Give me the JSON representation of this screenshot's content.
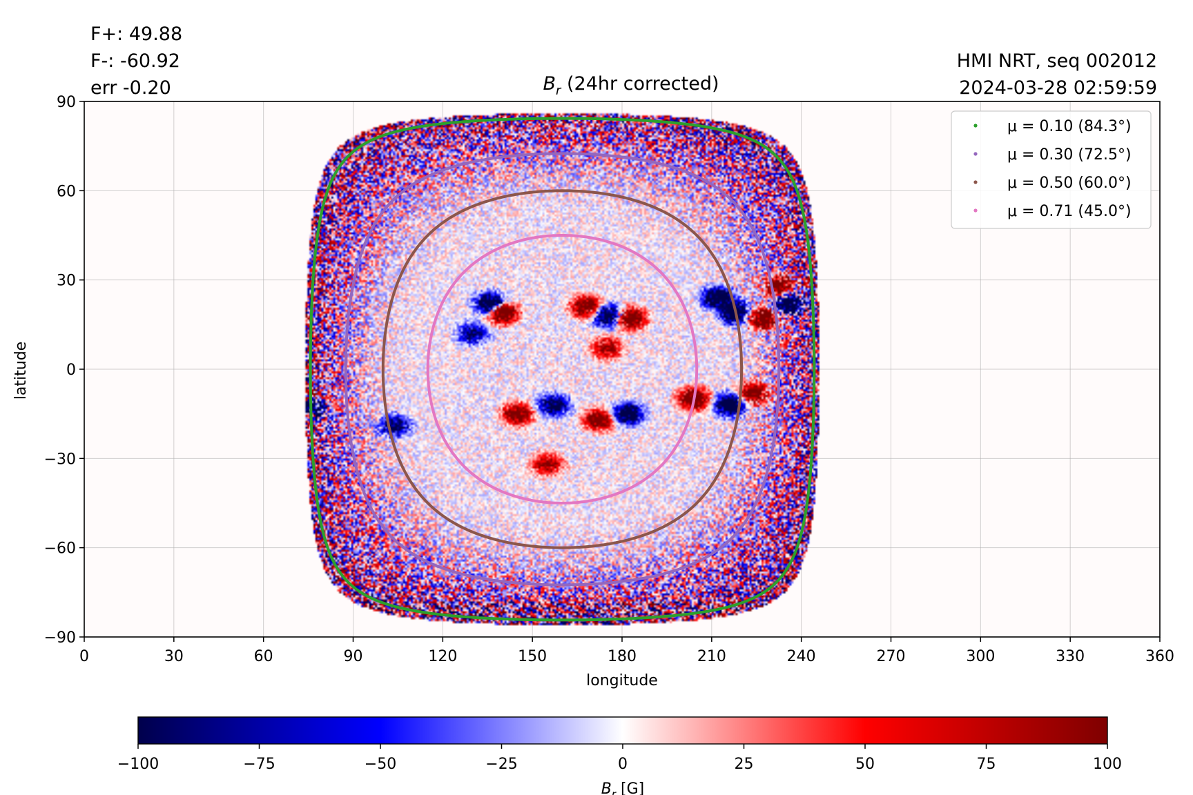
{
  "header": {
    "flux_pos": "F+: 49.88",
    "flux_neg": "F-: -60.92",
    "err": "err -0.20",
    "instrument": "HMI NRT, seq 002012",
    "timestamp": "2024-03-28 02:59:59"
  },
  "chart_data": {
    "type": "heatmap",
    "title": {
      "symbol": "B",
      "sub": "r",
      "text": " (24hr corrected)"
    },
    "xlabel": "longitude",
    "ylabel": "latitude",
    "xlim": [
      0,
      360
    ],
    "ylim": [
      -90,
      90
    ],
    "xticks": [
      0,
      30,
      60,
      90,
      120,
      150,
      180,
      210,
      240,
      270,
      300,
      330,
      360
    ],
    "yticks": [
      90,
      60,
      30,
      0,
      -30,
      -60,
      -90
    ],
    "ytick_labels": [
      "90",
      "60",
      "30",
      "0",
      "−30",
      "−60",
      "−90"
    ],
    "grid": true,
    "disk_center": {
      "lon": 160,
      "lat": -7
    },
    "legend": {
      "placement": "upper right",
      "entries": [
        {
          "label": "μ = 0.10 (84.3°)",
          "mu": 0.1,
          "angle_deg": 84.3,
          "color": "#2ca02c"
        },
        {
          "label": "μ = 0.30 (72.5°)",
          "mu": 0.3,
          "angle_deg": 72.5,
          "color": "#9467bd"
        },
        {
          "label": "μ = 0.50 (60.0°)",
          "mu": 0.5,
          "angle_deg": 60.0,
          "color": "#8c564b"
        },
        {
          "label": "μ = 0.71 (45.0°)",
          "mu": 0.71,
          "angle_deg": 45.0,
          "color": "#e377c2"
        }
      ]
    },
    "active_regions": [
      {
        "lon": 136,
        "lat": 22,
        "polarity": -1,
        "strength": 1.0
      },
      {
        "lon": 140,
        "lat": 19,
        "polarity": 1,
        "strength": 1.0
      },
      {
        "lon": 130,
        "lat": 12,
        "polarity": -1,
        "strength": 0.6
      },
      {
        "lon": 168,
        "lat": 21,
        "polarity": 1,
        "strength": 0.9
      },
      {
        "lon": 175,
        "lat": 18,
        "polarity": -1,
        "strength": 0.9
      },
      {
        "lon": 183,
        "lat": 17,
        "polarity": 1,
        "strength": 0.9
      },
      {
        "lon": 175,
        "lat": 7,
        "polarity": 1,
        "strength": 0.6
      },
      {
        "lon": 212,
        "lat": 24,
        "polarity": -1,
        "strength": 1.0
      },
      {
        "lon": 218,
        "lat": 19,
        "polarity": -1,
        "strength": 1.0
      },
      {
        "lon": 227,
        "lat": 17,
        "polarity": 1,
        "strength": 1.0
      },
      {
        "lon": 236,
        "lat": 22,
        "polarity": -1,
        "strength": 1.0
      },
      {
        "lon": 233,
        "lat": 28,
        "polarity": 1,
        "strength": 0.8
      },
      {
        "lon": 204,
        "lat": -10,
        "polarity": 1,
        "strength": 1.0
      },
      {
        "lon": 216,
        "lat": -12,
        "polarity": -1,
        "strength": 1.0
      },
      {
        "lon": 224,
        "lat": -8,
        "polarity": 1,
        "strength": 0.8
      },
      {
        "lon": 182,
        "lat": -15,
        "polarity": -1,
        "strength": 0.9
      },
      {
        "lon": 172,
        "lat": -17,
        "polarity": 1,
        "strength": 0.8
      },
      {
        "lon": 157,
        "lat": -12,
        "polarity": -1,
        "strength": 0.8
      },
      {
        "lon": 145,
        "lat": -15,
        "polarity": 1,
        "strength": 0.8
      },
      {
        "lon": 155,
        "lat": -32,
        "polarity": 1,
        "strength": 0.6
      },
      {
        "lon": 104,
        "lat": -19,
        "polarity": -1,
        "strength": 0.7
      },
      {
        "lon": 76,
        "lat": -12,
        "polarity": -1,
        "strength": 1.0
      },
      {
        "lon": 76,
        "lat": -9,
        "polarity": 1,
        "strength": 0.5
      }
    ],
    "colorbar": {
      "label": {
        "symbol": "B",
        "sub": "r",
        "text": " [G]"
      },
      "range": [
        -100,
        100
      ],
      "ticks": [
        -100,
        -75,
        -50,
        -25,
        0,
        25,
        50,
        75,
        100
      ],
      "tick_labels": [
        "−100",
        "−75",
        "−50",
        "−25",
        "0",
        "25",
        "50",
        "75",
        "100"
      ],
      "colormap": [
        "#00004c",
        "#0000ff",
        "#ffffff",
        "#ff0000",
        "#7f0000"
      ]
    }
  }
}
